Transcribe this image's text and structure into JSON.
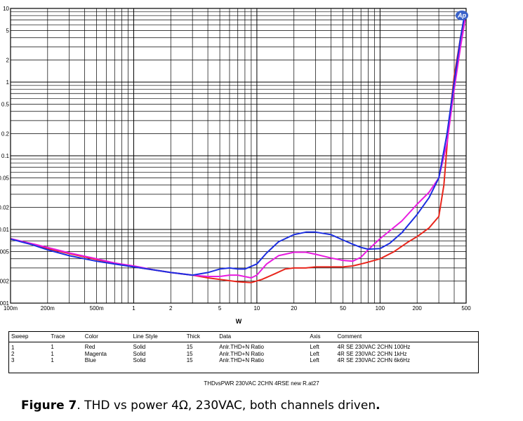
{
  "chart_data": {
    "type": "line",
    "title": "",
    "xlabel": "W",
    "ylabel": "",
    "x_scale": "log",
    "y_scale": "log",
    "xlim": [
      0.1,
      500
    ],
    "ylim": [
      0.001,
      10
    ],
    "x_ticks": [
      "100m",
      "200m",
      "500m",
      "1",
      "2",
      "5",
      "10",
      "20",
      "50",
      "100",
      "200",
      "500"
    ],
    "y_ticks": [
      ".001",
      ".002",
      ".005",
      "0.01",
      "0.02",
      "0.05",
      "0.1",
      "0.2",
      "0.5",
      "1",
      "2",
      "5",
      "10"
    ],
    "grid": true,
    "series": [
      {
        "name": "",
        "color": "#e8261c",
        "points": [
          [
            0.1,
            0.0075
          ],
          [
            0.15,
            0.0062
          ],
          [
            0.2,
            0.0055
          ],
          [
            0.3,
            0.0047
          ],
          [
            0.5,
            0.0039
          ],
          [
            0.7,
            0.0035
          ],
          [
            1,
            0.0031
          ],
          [
            1.5,
            0.0028
          ],
          [
            2,
            0.0026
          ],
          [
            3,
            0.0024
          ],
          [
            4,
            0.0022
          ],
          [
            5,
            0.0021
          ],
          [
            7,
            0.00195
          ],
          [
            9,
            0.0019
          ],
          [
            11,
            0.0021
          ],
          [
            14,
            0.0025
          ],
          [
            17,
            0.0029
          ],
          [
            20,
            0.003
          ],
          [
            25,
            0.003
          ],
          [
            30,
            0.0031
          ],
          [
            40,
            0.0031
          ],
          [
            50,
            0.0031
          ],
          [
            60,
            0.0032
          ],
          [
            70,
            0.0034
          ],
          [
            80,
            0.0036
          ],
          [
            100,
            0.004
          ],
          [
            130,
            0.005
          ],
          [
            170,
            0.0068
          ],
          [
            200,
            0.008
          ],
          [
            250,
            0.0105
          ],
          [
            300,
            0.015
          ],
          [
            330,
            0.04
          ],
          [
            360,
            0.25
          ],
          [
            400,
            1.2
          ],
          [
            450,
            4
          ],
          [
            490,
            8
          ]
        ]
      },
      {
        "name": "",
        "color": "#e81ce0",
        "points": [
          [
            0.1,
            0.0075
          ],
          [
            0.15,
            0.0064
          ],
          [
            0.2,
            0.0057
          ],
          [
            0.3,
            0.0048
          ],
          [
            0.5,
            0.004
          ],
          [
            0.7,
            0.0035
          ],
          [
            1,
            0.0032
          ],
          [
            1.5,
            0.0028
          ],
          [
            2,
            0.0026
          ],
          [
            3,
            0.0024
          ],
          [
            4,
            0.0023
          ],
          [
            5,
            0.0023
          ],
          [
            6,
            0.0024
          ],
          [
            7,
            0.0024
          ],
          [
            9,
            0.0022
          ],
          [
            10,
            0.0024
          ],
          [
            12,
            0.0034
          ],
          [
            15,
            0.0044
          ],
          [
            20,
            0.0049
          ],
          [
            25,
            0.0049
          ],
          [
            30,
            0.0046
          ],
          [
            40,
            0.0041
          ],
          [
            50,
            0.0038
          ],
          [
            60,
            0.0037
          ],
          [
            70,
            0.0042
          ],
          [
            80,
            0.0053
          ],
          [
            100,
            0.0075
          ],
          [
            150,
            0.013
          ],
          [
            200,
            0.022
          ],
          [
            250,
            0.032
          ],
          [
            300,
            0.05
          ],
          [
            350,
            0.15
          ],
          [
            400,
            0.8
          ],
          [
            450,
            3
          ],
          [
            490,
            7
          ]
        ]
      },
      {
        "name": "",
        "color": "#1c2ee0",
        "points": [
          [
            0.1,
            0.0074
          ],
          [
            0.15,
            0.0062
          ],
          [
            0.2,
            0.0053
          ],
          [
            0.3,
            0.0044
          ],
          [
            0.5,
            0.0037
          ],
          [
            0.7,
            0.0034
          ],
          [
            1,
            0.0031
          ],
          [
            1.5,
            0.0028
          ],
          [
            2,
            0.0026
          ],
          [
            3,
            0.0024
          ],
          [
            4,
            0.0026
          ],
          [
            5,
            0.0029
          ],
          [
            6,
            0.003
          ],
          [
            7,
            0.0029
          ],
          [
            8,
            0.0029
          ],
          [
            10,
            0.0034
          ],
          [
            12,
            0.0048
          ],
          [
            15,
            0.0068
          ],
          [
            20,
            0.0085
          ],
          [
            25,
            0.0092
          ],
          [
            30,
            0.0092
          ],
          [
            40,
            0.0085
          ],
          [
            50,
            0.0072
          ],
          [
            60,
            0.0063
          ],
          [
            70,
            0.0057
          ],
          [
            80,
            0.0054
          ],
          [
            100,
            0.0055
          ],
          [
            120,
            0.0065
          ],
          [
            150,
            0.009
          ],
          [
            200,
            0.016
          ],
          [
            250,
            0.027
          ],
          [
            300,
            0.05
          ],
          [
            350,
            0.2
          ],
          [
            400,
            1
          ],
          [
            450,
            4
          ],
          [
            490,
            9
          ]
        ]
      }
    ]
  },
  "legend": {
    "headers": [
      "Sweep",
      "Trace",
      "Color",
      "Line Style",
      "Thick",
      "Data",
      "Axis",
      "Comment"
    ],
    "rows": [
      [
        "1",
        "1",
        "Red",
        "Solid",
        "15",
        "Anlr.THD+N Ratio",
        "Left",
        "4R SE 230VAC 2CHN 100Hz"
      ],
      [
        "2",
        "1",
        "Magenta",
        "Solid",
        "15",
        "Anlr.THD+N Ratio",
        "Left",
        "4R SE 230VAC 2CHN 1kHz"
      ],
      [
        "3",
        "1",
        "Blue",
        "Solid",
        "15",
        "Anlr.THD+N Ratio",
        "Left",
        "4R SE 230VAC 2CHN 6k6Hz"
      ]
    ]
  },
  "footnote": "THDvsPWR 230VAC 2CHN 4RSE new R.at27",
  "caption": {
    "label": "Figure 7",
    "text": ". THD vs power 4Ω, 230VAC, both channels driven",
    "end": "."
  },
  "logo": "Ap"
}
